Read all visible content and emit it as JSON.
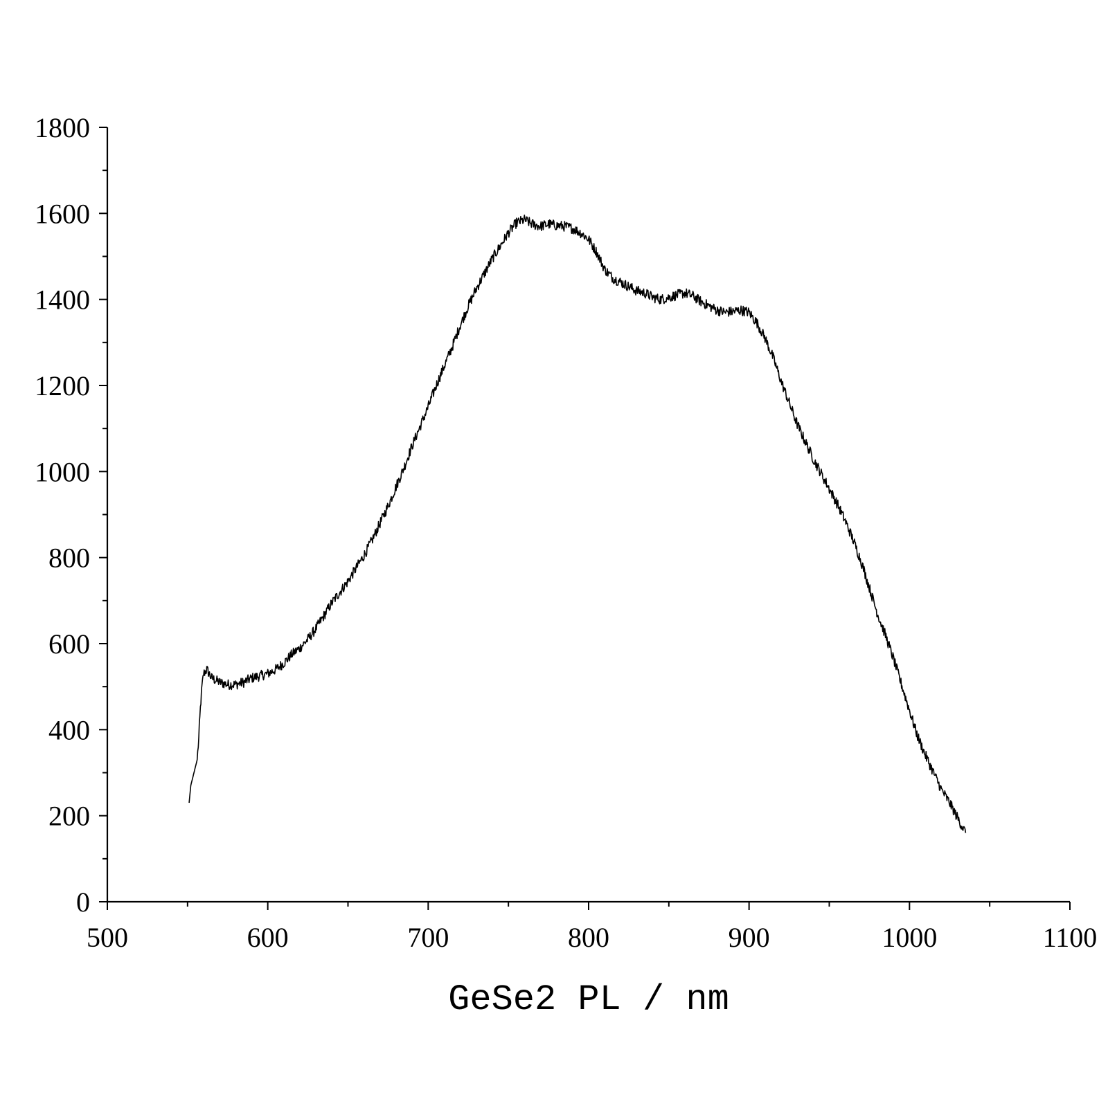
{
  "chart_data": {
    "type": "line",
    "title": "",
    "xlabel": "GeSe2 PL / nm",
    "ylabel": "",
    "xlim": [
      500,
      1100
    ],
    "ylim": [
      0,
      1800
    ],
    "x_ticks": [
      500,
      600,
      700,
      800,
      900,
      1000,
      1100
    ],
    "x_minor_ticks": [
      550,
      650,
      750,
      850,
      950,
      1050
    ],
    "y_ticks": [
      0,
      200,
      400,
      600,
      800,
      1000,
      1200,
      1400,
      1600,
      1800
    ],
    "y_minor_ticks": [
      100,
      300,
      500,
      700,
      900,
      1100,
      1300,
      1500,
      1700
    ],
    "grid": false,
    "legend": "none",
    "line_color": "#000000",
    "series": [
      {
        "x": [
          551,
          552,
          554,
          556,
          557,
          558,
          559,
          560,
          562,
          565,
          570,
          575,
          580,
          585,
          590,
          595,
          600,
          605,
          610,
          615,
          620,
          625,
          630,
          635,
          640,
          645,
          650,
          655,
          660,
          665,
          670,
          675,
          680,
          685,
          690,
          695,
          700,
          705,
          710,
          715,
          720,
          725,
          730,
          735,
          740,
          745,
          750,
          755,
          760,
          765,
          770,
          775,
          780,
          785,
          790,
          795,
          800,
          805,
          810,
          815,
          820,
          825,
          830,
          835,
          840,
          845,
          850,
          855,
          860,
          865,
          870,
          875,
          880,
          885,
          890,
          895,
          900,
          905,
          910,
          915,
          920,
          925,
          930,
          935,
          940,
          945,
          950,
          955,
          960,
          965,
          970,
          975,
          980,
          985,
          990,
          995,
          1000,
          1005,
          1010,
          1015,
          1020,
          1025,
          1030,
          1035
        ],
        "y": [
          230,
          270,
          300,
          330,
          380,
          450,
          500,
          530,
          540,
          520,
          510,
          505,
          505,
          510,
          520,
          525,
          530,
          540,
          555,
          575,
          590,
          610,
          635,
          665,
          695,
          720,
          745,
          775,
          805,
          840,
          880,
          920,
          965,
          1010,
          1060,
          1105,
          1150,
          1200,
          1245,
          1290,
          1340,
          1385,
          1425,
          1460,
          1495,
          1525,
          1555,
          1578,
          1585,
          1575,
          1570,
          1575,
          1572,
          1570,
          1565,
          1555,
          1540,
          1510,
          1470,
          1450,
          1440,
          1430,
          1420,
          1415,
          1405,
          1400,
          1405,
          1410,
          1415,
          1408,
          1395,
          1385,
          1375,
          1370,
          1372,
          1375,
          1370,
          1345,
          1310,
          1265,
          1210,
          1160,
          1110,
          1070,
          1030,
          995,
          960,
          925,
          885,
          840,
          790,
          730,
          670,
          620,
          565,
          505,
          445,
          385,
          340,
          300,
          260,
          230,
          195,
          160
        ]
      }
    ]
  }
}
